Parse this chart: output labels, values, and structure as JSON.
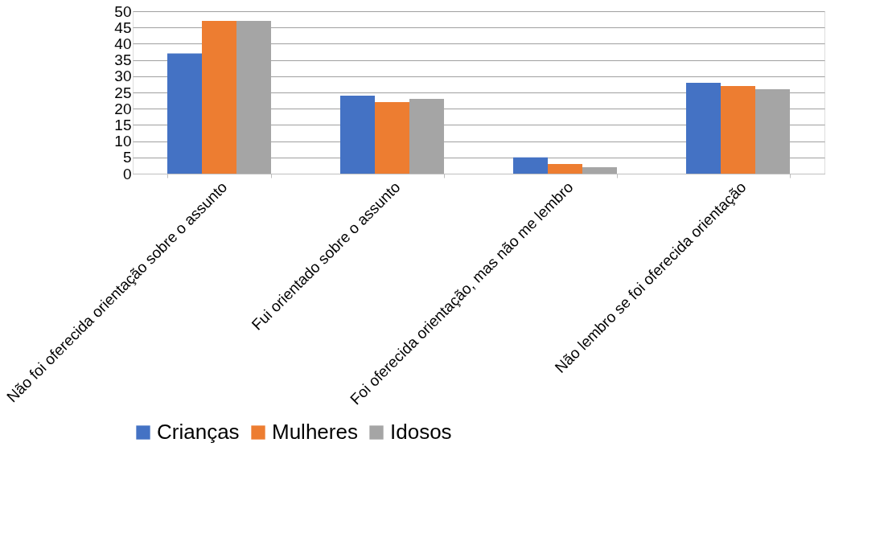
{
  "chart_data": {
    "type": "bar",
    "categories": [
      "Não foi oferecida orientação sobre o assunto",
      "Fui orientado sobre o assunto",
      "Foi oferecida orientação, mas não me lembro",
      "Não lembro se foi oferecida orientação"
    ],
    "series": [
      {
        "name": "Crianças",
        "color": "#4472c4",
        "values": [
          37,
          24,
          5,
          28
        ]
      },
      {
        "name": "Mulheres",
        "color": "#ed7d31",
        "values": [
          47,
          22,
          3,
          27
        ]
      },
      {
        "name": "Idosos",
        "color": "#a5a5a5",
        "values": [
          47,
          23,
          2,
          26
        ]
      }
    ],
    "ylim": [
      0,
      50
    ],
    "yticks": [
      0,
      5,
      10,
      15,
      20,
      25,
      30,
      35,
      40,
      45,
      50
    ],
    "grid": "y",
    "legend": "bottom"
  }
}
